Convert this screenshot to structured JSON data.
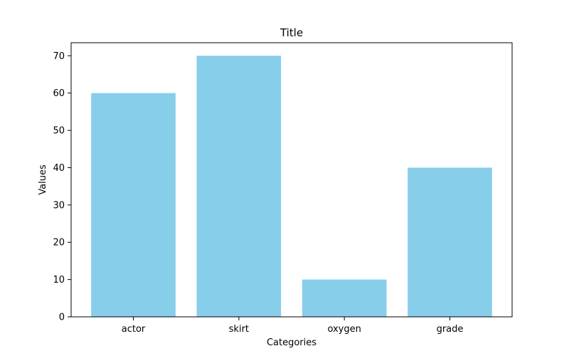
{
  "chart_data": {
    "type": "bar",
    "title": "Title",
    "xlabel": "Categories",
    "ylabel": "Values",
    "categories": [
      "actor",
      "skirt",
      "oxygen",
      "grade"
    ],
    "values": [
      60,
      70,
      10,
      40
    ],
    "ylim": [
      0,
      73.5
    ],
    "yticks": [
      0,
      10,
      20,
      30,
      40,
      50,
      60,
      70
    ],
    "bar_color": "#87CEEB",
    "grid": false,
    "legend": "none"
  }
}
